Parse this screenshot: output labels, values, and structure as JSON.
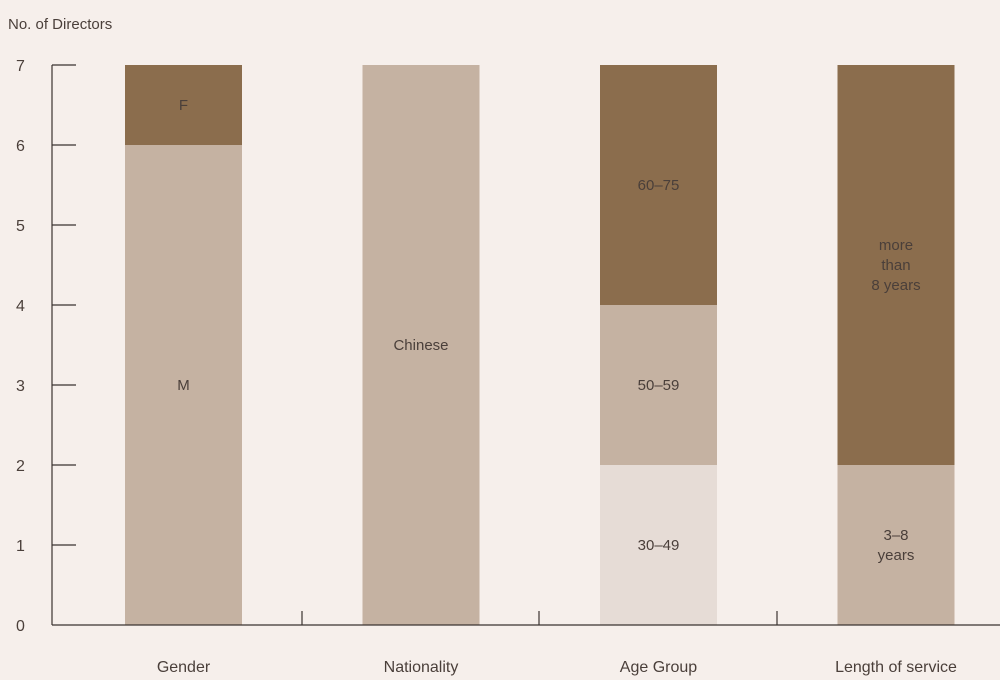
{
  "chart_data": {
    "type": "bar",
    "stacked": true,
    "title": "",
    "ylabel": "No. of Directors",
    "xlabel": "",
    "ylim": [
      0,
      7
    ],
    "yticks": [
      0,
      1,
      2,
      3,
      4,
      5,
      6,
      7
    ],
    "grid": false,
    "legend": "none",
    "categories": [
      "Gender",
      "Nationality",
      "Age Group",
      "Length of service"
    ],
    "bars": [
      {
        "category": "Gender",
        "segments": [
          {
            "label": "M",
            "value": 6,
            "color": "#c5b2a2"
          },
          {
            "label": "F",
            "value": 1,
            "color": "#8b6d4d"
          }
        ]
      },
      {
        "category": "Nationality",
        "segments": [
          {
            "label": "Chinese",
            "value": 7,
            "color": "#c5b2a2"
          }
        ]
      },
      {
        "category": "Age Group",
        "segments": [
          {
            "label": "30–49",
            "value": 2,
            "color": "#e6dcd6"
          },
          {
            "label": "50–59",
            "value": 2,
            "color": "#c5b2a2"
          },
          {
            "label": "60–75",
            "value": 3,
            "color": "#8b6d4d"
          }
        ]
      },
      {
        "category": "Length of service",
        "segments": [
          {
            "label": "3–8\nyears",
            "value": 2,
            "color": "#c5b2a2"
          },
          {
            "label": "more\nthan\n8 years",
            "value": 5,
            "color": "#8b6d4d"
          }
        ]
      }
    ]
  }
}
